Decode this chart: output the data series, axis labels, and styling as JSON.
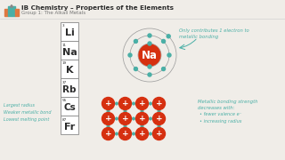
{
  "title": "IB Chemistry – Properties of the Elements",
  "subtitle": "Group 1: The Alkali Metals",
  "elements": [
    {
      "symbol": "Li",
      "number": "3"
    },
    {
      "symbol": "Na",
      "number": "11"
    },
    {
      "symbol": "K",
      "number": "19"
    },
    {
      "symbol": "Rb",
      "number": "37"
    },
    {
      "symbol": "Cs",
      "number": "55"
    },
    {
      "symbol": "Fr",
      "number": "87"
    }
  ],
  "left_text": [
    "Largest radius",
    "Weaker metallic bond",
    "Lowest melting point"
  ],
  "atom_label": "Na",
  "atom_note": "Only contributes 1 electron to\nmetallic bonding",
  "bonding_note": "Metallic bonding strength\ndecreases with:",
  "bonding_bullets": [
    "fewer valence e⁻",
    "increasing radius"
  ],
  "bg_color": "#f0ede8",
  "header_color": "#2c2c2c",
  "teal_color": "#4aafa6",
  "red_color": "#d63010",
  "bar_colors_left": [
    "#e07840",
    "#4aafa6"
  ],
  "bar_colors_right": [
    "#4aafa6",
    "#e07840"
  ],
  "element_box_color": "#ffffff"
}
